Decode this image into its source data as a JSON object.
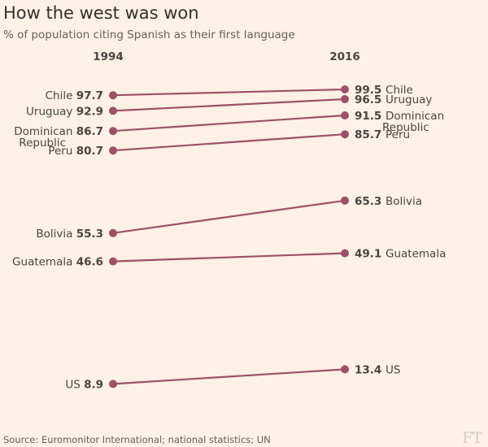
{
  "title": "How the west was won",
  "subtitle": "% of population citing Spanish as their first language",
  "source": "Source: Euromonitor International; national statistics; UN",
  "logo": "FT",
  "colors": {
    "background": "#fff1e5",
    "line": "#9e5067"
  },
  "chart_data": {
    "type": "slope",
    "x": [
      "1994",
      "2016"
    ],
    "series": [
      {
        "name": "Chile",
        "values": [
          97.7,
          99.5
        ]
      },
      {
        "name": "Uruguay",
        "values": [
          92.9,
          96.5
        ]
      },
      {
        "name": "Dominican Republic",
        "values": [
          86.7,
          91.5
        ]
      },
      {
        "name": "Peru",
        "values": [
          80.7,
          85.7
        ]
      },
      {
        "name": "Bolivia",
        "values": [
          55.3,
          65.3
        ]
      },
      {
        "name": "Guatemala",
        "values": [
          46.6,
          49.1
        ]
      },
      {
        "name": "US",
        "values": [
          8.9,
          13.4
        ]
      }
    ],
    "title": "How the west was won",
    "ylabel": "% of population citing Spanish as their first language",
    "grid": false
  }
}
